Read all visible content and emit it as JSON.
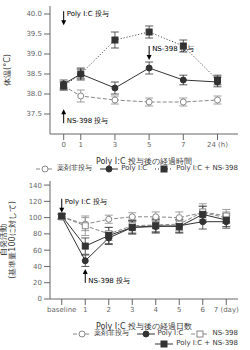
{
  "chart_data": [
    {
      "type": "line",
      "xlabel": "Poly I:C 投与後の経過時間",
      "ylabel": "体温(°C)",
      "x": [
        0,
        1,
        3,
        5,
        7,
        9
      ],
      "xlim": [
        -0.8,
        10.2
      ],
      "xticks": [
        0,
        1,
        3,
        5,
        7,
        {
          "value": 9,
          "label": "24 (h)"
        }
      ],
      "ylim": [
        37.0,
        40.2
      ],
      "yticks": [
        37.5,
        {
          "value": 38.0,
          "label": "38.0"
        },
        38.5,
        {
          "value": 39.0,
          "label": "39.0"
        },
        39.5,
        {
          "value": 40.0,
          "label": "40.0"
        }
      ],
      "grid": false,
      "legend": "lower right",
      "annotations": [
        {
          "text": "Poly I:C 投与",
          "x": 0,
          "y": 39.72
        },
        {
          "text": "NS-398 投与",
          "x": 5,
          "y": 38.85
        },
        {
          "text": "NS-398 投与",
          "x": 0,
          "y": 37.62
        }
      ],
      "series": [
        {
          "name": "薬剤非投与",
          "color": "#888888",
          "marker": "open_circle",
          "line_style": "dashed",
          "values": [
            38.2,
            37.95,
            37.85,
            37.8,
            37.8,
            37.85
          ],
          "yerr": [
            0.1,
            0.15,
            0.1,
            0.1,
            0.1,
            0.1
          ]
        },
        {
          "name": "Poly I:C",
          "color": "#333333",
          "marker": "circle",
          "line_style": "solid",
          "values": [
            38.25,
            38.5,
            38.15,
            38.65,
            38.35,
            38.3
          ],
          "yerr": [
            0.1,
            0.12,
            0.15,
            0.15,
            0.12,
            0.12
          ]
        },
        {
          "name": "Poly I:C + NS-398",
          "color": "#333333",
          "marker": "square",
          "line_style": "dotted",
          "values": [
            38.2,
            38.5,
            39.35,
            39.55,
            39.2,
            38.35
          ],
          "yerr": [
            0.1,
            0.15,
            0.2,
            0.15,
            0.15,
            0.12
          ]
        }
      ]
    },
    {
      "type": "line",
      "xlabel": "Poly I:C 投与後の経過日数",
      "ylabel": "自発活動\n(基準量100に対して)",
      "x": [
        0,
        1,
        2,
        3,
        4,
        5,
        6,
        7
      ],
      "xlim": [
        -0.5,
        7.5
      ],
      "xticks": [
        {
          "value": 0,
          "label": "baseline"
        },
        1,
        2,
        3,
        4,
        5,
        6,
        {
          "value": 7,
          "label": "7 (day)"
        }
      ],
      "ylim": [
        0,
        145
      ],
      "yticks": [
        0,
        20,
        40,
        60,
        80,
        100,
        120,
        140
      ],
      "grid": false,
      "legend": "lower right",
      "annotations": [
        {
          "text": "Poly I:C 投与",
          "x": 0,
          "y": 106
        },
        {
          "text": "NS-398 投与",
          "x": 1,
          "y": 37
        }
      ],
      "series": [
        {
          "name": "薬剤非投与",
          "color": "#888888",
          "marker": "open_circle",
          "line_style": "dashed",
          "values": [
            101,
            92,
            98,
            101,
            101,
            100,
            106,
            100
          ],
          "yerr": [
            3,
            8,
            5,
            5,
            6,
            7,
            8,
            7
          ]
        },
        {
          "name": "Poly I:C",
          "color": "#333333",
          "marker": "circle",
          "line_style": "solid",
          "values": [
            101,
            47,
            75,
            88,
            89,
            90,
            95,
            95
          ],
          "yerr": [
            3,
            7,
            8,
            8,
            8,
            8,
            9,
            8
          ]
        },
        {
          "name": "NS-398",
          "color": "#888888",
          "marker": "open_square",
          "line_style": "dashed",
          "values": [
            101,
            90,
            80,
            90,
            91,
            92,
            107,
            102
          ],
          "yerr": [
            3,
            12,
            8,
            8,
            8,
            8,
            10,
            8
          ]
        },
        {
          "name": "Poly I:C + NS-398",
          "color": "#333333",
          "marker": "square",
          "line_style": "solid",
          "values": [
            102,
            65,
            78,
            88,
            90,
            89,
            104,
            97
          ],
          "yerr": [
            3,
            10,
            10,
            8,
            8,
            8,
            10,
            8
          ]
        }
      ]
    }
  ]
}
